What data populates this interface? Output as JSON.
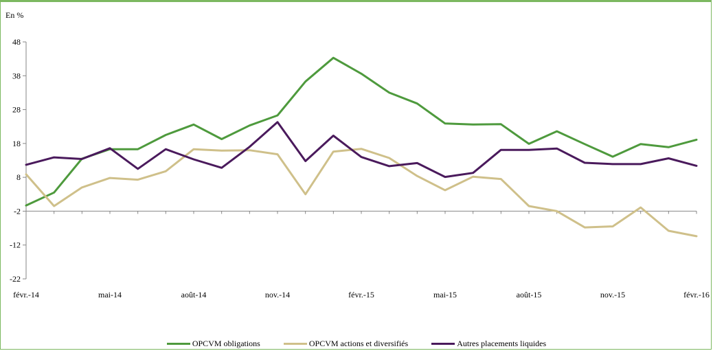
{
  "chart_data": {
    "type": "line",
    "unit_label": "En %",
    "ylim": [
      -22,
      48
    ],
    "y_ticks": [
      "48",
      "38",
      "28",
      "18",
      "8",
      "-2",
      "-12",
      "-22"
    ],
    "x_tick_labels": [
      "févr.-14",
      "mai-14",
      "août-14",
      "nov.-14",
      "févr.-15",
      "mai-15",
      "août-15",
      "nov.-15",
      "févr.-16"
    ],
    "legend_position": "bottom",
    "grid": false,
    "series": [
      {
        "name": "OPCVM obligations",
        "color": "#4e9a3d",
        "values": [
          -0.3,
          3.5,
          13.5,
          16.3,
          16.3,
          20.5,
          23.6,
          19.3,
          23.3,
          26.3,
          36.3,
          43.3,
          38.6,
          33.0,
          29.8,
          23.9,
          23.6,
          23.7,
          17.9,
          21.6,
          17.8,
          14.1,
          17.8,
          16.9,
          19.1
        ]
      },
      {
        "name": "OPCVM actions et diversifiés",
        "color": "#cfc08a",
        "values": [
          8.9,
          -0.5,
          5.0,
          7.8,
          7.3,
          9.8,
          16.3,
          15.9,
          16.0,
          14.8,
          3.0,
          15.6,
          16.4,
          13.7,
          8.4,
          4.2,
          8.2,
          7.5,
          -0.5,
          -2.0,
          -6.8,
          -6.5,
          -0.9,
          -7.8,
          -9.4
        ]
      },
      {
        "name": "Autres placements liquides",
        "color": "#4a1a5c",
        "values": [
          11.7,
          13.9,
          13.4,
          16.6,
          10.5,
          16.3,
          13.3,
          10.8,
          17.0,
          24.3,
          12.8,
          20.3,
          14.0,
          11.3,
          12.2,
          8.1,
          9.3,
          16.1,
          16.1,
          16.5,
          12.3,
          11.9,
          11.9,
          13.6,
          11.4
        ]
      }
    ]
  }
}
